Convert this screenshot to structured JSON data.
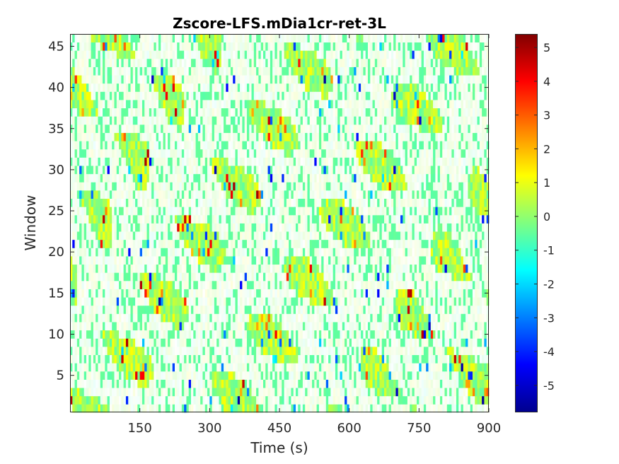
{
  "chart_data": {
    "type": "heatmap",
    "title": "Zscore-LFS.mDia1cr-ret-3L",
    "xlabel": "Time (s)",
    "ylabel": "Window",
    "xlim": [
      0,
      900
    ],
    "ylim": [
      0.5,
      46.5
    ],
    "x_ticks": [
      150,
      300,
      450,
      600,
      750,
      900
    ],
    "y_ticks": [
      5,
      10,
      15,
      20,
      25,
      30,
      35,
      40,
      45
    ],
    "n_windows": 46,
    "n_time_frames": 180,
    "frame_interval_s": 5,
    "colormap": "jet",
    "clim": [
      -5.8,
      5.4
    ],
    "colorbar": {
      "ticks": [
        -5,
        -4,
        -3,
        -2,
        -1,
        0,
        1,
        2,
        3,
        4,
        5
      ],
      "location": "right"
    },
    "value_summary": "Z-score values mostly between -1 and 1, with sparse extremes reaching about -5.5 and +5; diagonal bands of elevated activity propagate across windows over time",
    "grid": false
  }
}
